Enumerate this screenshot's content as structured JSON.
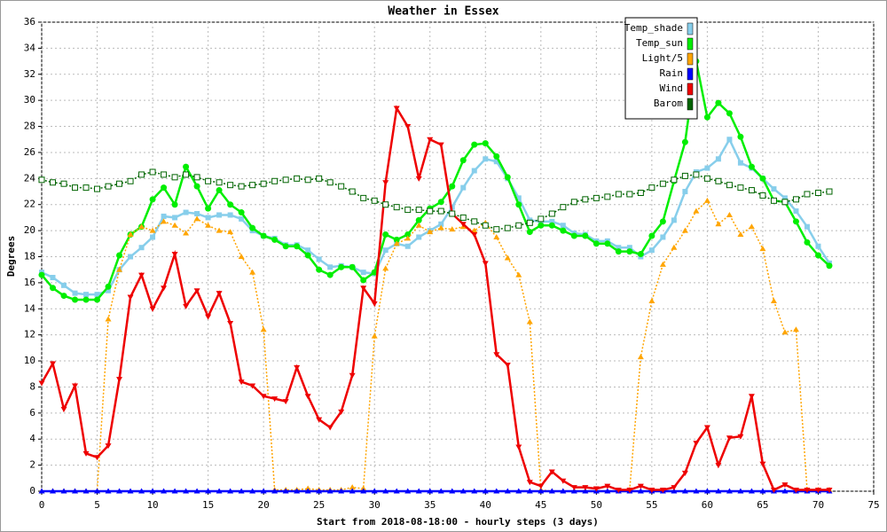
{
  "chart_data": {
    "type": "line",
    "title": "Weather in Essex",
    "x_label": "Start from 2018-08-18:00 - hourly steps (3 days)",
    "y_label": "Degrees",
    "x": [
      0,
      1,
      2,
      3,
      4,
      5,
      6,
      7,
      8,
      9,
      10,
      11,
      12,
      13,
      14,
      15,
      16,
      17,
      18,
      19,
      20,
      21,
      22,
      23,
      24,
      25,
      26,
      27,
      28,
      29,
      30,
      31,
      32,
      33,
      34,
      35,
      36,
      37,
      38,
      39,
      40,
      41,
      42,
      43,
      44,
      45,
      46,
      47,
      48,
      49,
      50,
      51,
      52,
      53,
      54,
      55,
      56,
      57,
      58,
      59,
      60,
      61,
      62,
      63,
      64,
      65,
      66,
      67,
      68,
      69,
      70,
      71
    ],
    "xlim": [
      0,
      75
    ],
    "xticks": [
      0,
      5,
      10,
      15,
      20,
      25,
      30,
      35,
      40,
      45,
      50,
      55,
      60,
      65,
      70,
      75
    ],
    "ylim": [
      0,
      36
    ],
    "yticks": [
      0,
      2,
      4,
      6,
      8,
      10,
      12,
      14,
      16,
      18,
      20,
      22,
      24,
      26,
      28,
      30,
      32,
      34,
      36
    ],
    "grid": true,
    "legend": "top-right",
    "series": [
      {
        "name": "Temp_shade",
        "color": "#87ceeb",
        "marker": "square",
        "line_style": "solid",
        "values": [
          16.8,
          16.4,
          15.8,
          15.2,
          15.1,
          15.1,
          15.4,
          17.0,
          18.0,
          18.7,
          19.5,
          21.1,
          21.0,
          21.4,
          21.3,
          21.0,
          21.2,
          21.2,
          20.9,
          20.0,
          19.6,
          19.4,
          18.9,
          18.9,
          18.5,
          17.8,
          17.2,
          17.3,
          17.2,
          16.8,
          16.7,
          18.5,
          19.0,
          18.8,
          19.5,
          20.0,
          20.5,
          21.8,
          23.3,
          24.6,
          25.5,
          25.3,
          24.0,
          22.5,
          20.8,
          20.7,
          20.7,
          20.4,
          19.8,
          19.7,
          19.2,
          19.2,
          18.7,
          18.7,
          18.0,
          18.5,
          19.5,
          20.8,
          23.0,
          24.5,
          24.8,
          25.5,
          27.0,
          25.2,
          24.8,
          24.0,
          23.2,
          22.5,
          21.5,
          20.3,
          18.8,
          17.5
        ]
      },
      {
        "name": "Temp_sun",
        "color": "#00ee00",
        "marker": "circle",
        "line_style": "solid",
        "values": [
          16.6,
          15.6,
          15.0,
          14.7,
          14.7,
          14.7,
          15.7,
          18.1,
          19.7,
          20.3,
          22.4,
          23.3,
          22.0,
          24.9,
          23.4,
          21.7,
          23.1,
          22.0,
          21.4,
          20.2,
          19.6,
          19.3,
          18.8,
          18.8,
          18.1,
          17.0,
          16.6,
          17.2,
          17.2,
          16.2,
          16.8,
          19.7,
          19.3,
          19.7,
          20.8,
          21.7,
          22.2,
          23.4,
          25.4,
          26.6,
          26.7,
          25.7,
          24.1,
          22.0,
          19.9,
          20.4,
          20.4,
          20.0,
          19.6,
          19.6,
          19.0,
          19.0,
          18.4,
          18.4,
          18.2,
          19.6,
          20.7,
          23.8,
          26.8,
          33.0,
          28.7,
          29.8,
          29.0,
          27.2,
          24.9,
          24.0,
          22.3,
          22.2,
          20.7,
          19.1,
          18.1,
          17.3
        ]
      },
      {
        "name": "Light/5",
        "color": "#ffa500",
        "marker": "triangle",
        "line_style": "dotted",
        "values": [
          0,
          0,
          0,
          0,
          0,
          0,
          13.2,
          17.0,
          19.7,
          20.3,
          20.0,
          20.7,
          20.4,
          19.8,
          20.9,
          20.4,
          20.0,
          19.9,
          18.0,
          16.8,
          12.4,
          0.1,
          0.1,
          0.1,
          0.2,
          0.1,
          0.1,
          0.1,
          0.3,
          0.2,
          11.9,
          17.1,
          19.0,
          19.4,
          20.4,
          19.9,
          20.2,
          20.1,
          20.3,
          20.0,
          20.6,
          19.5,
          17.9,
          16.6,
          13.0,
          0.1,
          0,
          0,
          0,
          0,
          0,
          0,
          0,
          0.1,
          10.3,
          14.6,
          17.4,
          18.7,
          20.0,
          21.5,
          22.3,
          20.5,
          21.2,
          19.7,
          20.3,
          18.6,
          14.6,
          12.2,
          12.4,
          0.1,
          0.1,
          0.1
        ]
      },
      {
        "name": "Rain",
        "color": "#0000ff",
        "marker": "triangle",
        "line_style": "solid",
        "values": [
          0,
          0,
          0,
          0,
          0,
          0,
          0,
          0,
          0,
          0,
          0,
          0,
          0,
          0,
          0,
          0,
          0,
          0,
          0,
          0,
          0,
          0,
          0,
          0,
          0,
          0,
          0,
          0,
          0,
          0,
          0,
          0,
          0,
          0,
          0,
          0,
          0,
          0,
          0,
          0,
          0,
          0,
          0,
          0,
          0,
          0,
          0,
          0,
          0,
          0,
          0,
          0,
          0,
          0,
          0,
          0,
          0,
          0,
          0,
          0,
          0,
          0,
          0,
          0,
          0,
          0,
          0,
          0,
          0,
          0,
          0,
          0
        ]
      },
      {
        "name": "Wind",
        "color": "#ee0000",
        "marker": "triangle-down",
        "line_style": "solid",
        "values": [
          8.3,
          9.8,
          6.3,
          8.1,
          2.9,
          2.6,
          3.5,
          8.6,
          14.9,
          16.6,
          14.0,
          15.6,
          18.2,
          14.2,
          15.4,
          13.4,
          15.2,
          12.9,
          8.4,
          8.1,
          7.3,
          7.1,
          6.9,
          9.5,
          7.3,
          5.5,
          4.9,
          6.1,
          8.9,
          15.6,
          14.4,
          23.7,
          29.4,
          28.0,
          24.0,
          27.0,
          26.6,
          21.3,
          20.5,
          19.7,
          17.5,
          10.5,
          9.7,
          3.4,
          0.7,
          0.4,
          1.5,
          0.8,
          0.3,
          0.3,
          0.2,
          0.4,
          0.1,
          0.1,
          0.4,
          0.1,
          0.1,
          0.3,
          1.4,
          3.7,
          4.9,
          2.0,
          4.1,
          4.2,
          7.3,
          2.1,
          0.1,
          0.5,
          0.1,
          0.1,
          0.1,
          0.1
        ]
      },
      {
        "name": "Barom",
        "color": "#006400",
        "marker": "open-square",
        "line_style": "dotted",
        "values": [
          23.9,
          23.7,
          23.6,
          23.3,
          23.3,
          23.2,
          23.4,
          23.6,
          23.8,
          24.3,
          24.5,
          24.3,
          24.1,
          24.3,
          24.1,
          23.8,
          23.7,
          23.5,
          23.4,
          23.5,
          23.6,
          23.8,
          23.9,
          24.0,
          23.9,
          24.0,
          23.7,
          23.4,
          23.0,
          22.5,
          22.3,
          22.0,
          21.8,
          21.6,
          21.6,
          21.5,
          21.5,
          21.3,
          21.0,
          20.7,
          20.4,
          20.1,
          20.2,
          20.4,
          20.6,
          20.9,
          21.3,
          21.8,
          22.2,
          22.4,
          22.5,
          22.6,
          22.8,
          22.8,
          22.9,
          23.3,
          23.6,
          23.9,
          24.2,
          24.3,
          24.0,
          23.8,
          23.5,
          23.3,
          23.1,
          22.7,
          22.3,
          22.2,
          22.4,
          22.8,
          22.9,
          23.0
        ]
      }
    ]
  }
}
